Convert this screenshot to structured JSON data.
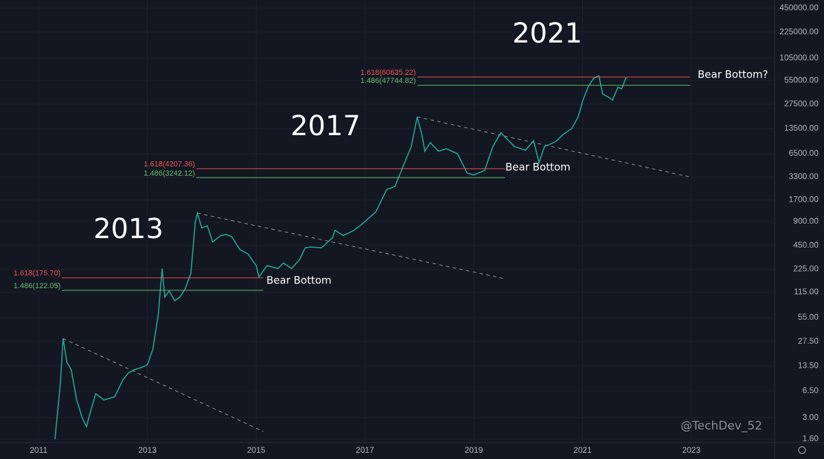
{
  "chart_data": {
    "type": "line",
    "log_y": true,
    "grid": true,
    "xlim": [
      2010.29,
      2024.53
    ],
    "xticks": [
      2011,
      2013,
      2015,
      2017,
      2019,
      2021,
      2023
    ],
    "ylim": [
      1.45,
      571000
    ],
    "yticks": [
      {
        "value": 450000,
        "label": "450000.00"
      },
      {
        "value": 225000,
        "label": "225000.00"
      },
      {
        "value": 105000,
        "label": "105000.00"
      },
      {
        "value": 55000,
        "label": "55000.00"
      },
      {
        "value": 27500,
        "label": "27500.00"
      },
      {
        "value": 13500,
        "label": "13500.00"
      },
      {
        "value": 6500,
        "label": "6500.00"
      },
      {
        "value": 3300,
        "label": "3300.00"
      },
      {
        "value": 1700,
        "label": "1700.00"
      },
      {
        "value": 900,
        "label": "900.00"
      },
      {
        "value": 450,
        "label": "450.00"
      },
      {
        "value": 225,
        "label": "225.00"
      },
      {
        "value": 115,
        "label": "115.00"
      },
      {
        "value": 55,
        "label": "55.00"
      },
      {
        "value": 27.5,
        "label": "27.50"
      },
      {
        "value": 13.5,
        "label": "13.50"
      },
      {
        "value": 6.5,
        "label": "6.50"
      },
      {
        "value": 3,
        "label": "3.00"
      },
      {
        "value": 1.6,
        "label": "1.60"
      }
    ],
    "color": "#26a69a",
    "x": [
      2011.3,
      2011.4,
      2011.45,
      2011.52,
      2011.6,
      2011.7,
      2011.8,
      2011.88,
      2011.95,
      2012.05,
      2012.2,
      2012.4,
      2012.55,
      2012.65,
      2012.75,
      2012.9,
      2013.0,
      2013.1,
      2013.2,
      2013.27,
      2013.32,
      2013.4,
      2013.5,
      2013.6,
      2013.7,
      2013.8,
      2013.88,
      2013.92,
      2014.0,
      2014.1,
      2014.2,
      2014.35,
      2014.45,
      2014.55,
      2014.7,
      2014.85,
      2015.0,
      2015.05,
      2015.2,
      2015.4,
      2015.5,
      2015.65,
      2015.8,
      2015.9,
      2016.0,
      2016.2,
      2016.4,
      2016.45,
      2016.6,
      2016.8,
      2017.0,
      2017.2,
      2017.4,
      2017.55,
      2017.7,
      2017.85,
      2017.96,
      2018.05,
      2018.1,
      2018.2,
      2018.35,
      2018.5,
      2018.7,
      2018.88,
      2019.0,
      2019.2,
      2019.35,
      2019.5,
      2019.55,
      2019.75,
      2019.95,
      2020.1,
      2020.2,
      2020.3,
      2020.5,
      2020.65,
      2020.8,
      2020.92,
      2021.0,
      2021.1,
      2021.2,
      2021.3,
      2021.37,
      2021.5,
      2021.55,
      2021.65,
      2021.72,
      2021.8
    ],
    "values": [
      1.6,
      8,
      30,
      15,
      12,
      5,
      3,
      2.3,
      3.5,
      6,
      5,
      5.5,
      9,
      11,
      12,
      13,
      14,
      22,
      60,
      230,
      100,
      120,
      90,
      100,
      130,
      200,
      900,
      1150,
      750,
      800,
      500,
      600,
      620,
      580,
      400,
      350,
      250,
      180,
      250,
      230,
      270,
      230,
      300,
      420,
      430,
      420,
      560,
      700,
      600,
      700,
      900,
      1200,
      2300,
      2500,
      4500,
      8000,
      19000,
      11000,
      7000,
      9000,
      7000,
      7500,
      6500,
      3700,
      3500,
      4000,
      8000,
      12000,
      11000,
      8000,
      7200,
      9500,
      5000,
      8000,
      9200,
      11500,
      13500,
      19000,
      30000,
      45000,
      58000,
      63000,
      37000,
      33000,
      31000,
      45000,
      43000,
      60000
    ],
    "levels": [
      {
        "label": "1.618(175.70)",
        "value": 175.7,
        "color": "#ef5350",
        "x": [
          2011.43,
          2015.13
        ]
      },
      {
        "label": "1.486(122.05)",
        "value": 122.05,
        "color": "#66bb6a",
        "x": [
          2011.43,
          2015.13
        ]
      },
      {
        "label": "1.618(4207.36)",
        "value": 4207.36,
        "color": "#ef5350",
        "x": [
          2013.9,
          2019.57
        ]
      },
      {
        "label": "1.486(3242.12)",
        "value": 3242.12,
        "color": "#66bb6a",
        "x": [
          2013.9,
          2019.57
        ]
      },
      {
        "label": "1.618(60635.22)",
        "value": 60635.22,
        "color": "#ef5350",
        "x": [
          2017.96,
          2022.98
        ]
      },
      {
        "label": "1.486(47744.82)",
        "value": 47744.82,
        "color": "#66bb6a",
        "x": [
          2017.96,
          2022.98
        ]
      }
    ],
    "trendlines": [
      {
        "x": [
          2011.45,
          2015.13
        ],
        "y": [
          30,
          2
        ]
      },
      {
        "x": [
          2013.92,
          2019.57
        ],
        "y": [
          1150,
          171
        ]
      },
      {
        "x": [
          2017.96,
          2022.98
        ],
        "y": [
          19000,
          3300
        ]
      }
    ],
    "annotations": [
      "2013",
      "2017",
      "2021",
      "Bear Bottom",
      "Bear Bottom",
      "Bear Bottom?"
    ],
    "watermark": "@TechDev_52"
  }
}
